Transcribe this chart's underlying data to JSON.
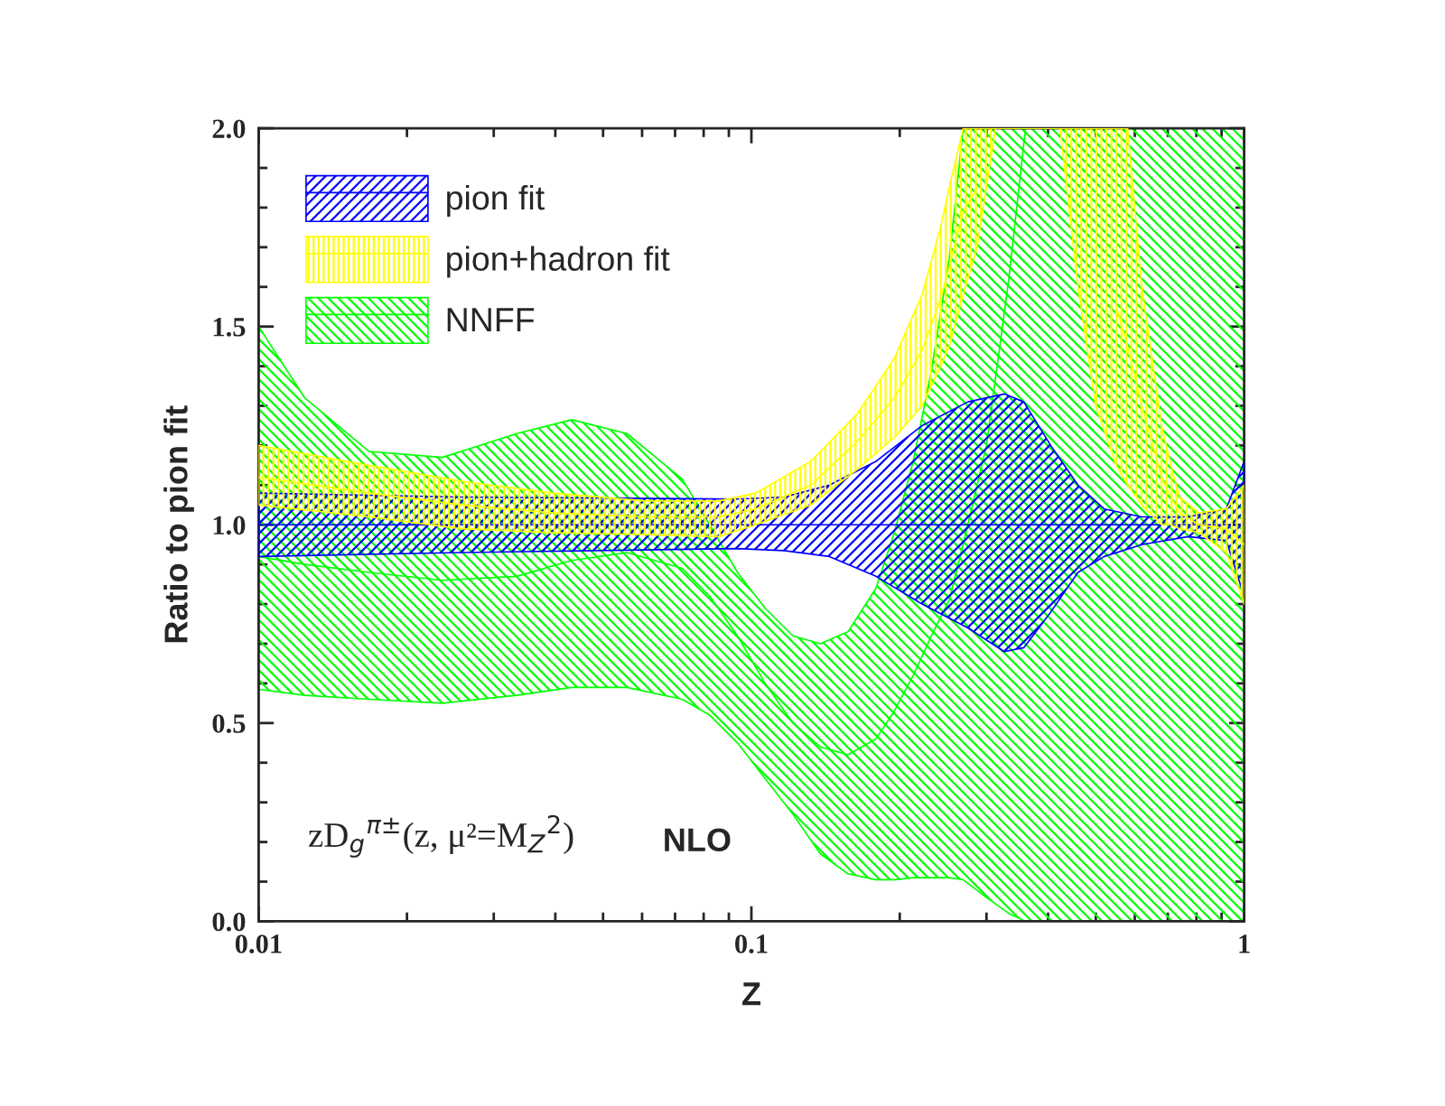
{
  "chart_data": {
    "type": "line",
    "xlabel": "Z",
    "ylabel": "Ratio to pion fit",
    "log": "x",
    "xlim": [
      0.01,
      1
    ],
    "xticks": [
      0.01,
      0.1,
      1
    ],
    "ylim": [
      0,
      2.0
    ],
    "yticks": [
      {
        "value": 0,
        "label": "0.0"
      },
      0.5,
      {
        "value": 1,
        "label": "1.0"
      },
      1.5,
      {
        "value": 2,
        "label": "2.0"
      }
    ],
    "grid": false,
    "legend": "top left",
    "marker": "none",
    "line_style": "solid",
    "annotations": [
      "zD$_{g}$$^{π±}$(z, μ²=M$_{Z}$$^{2}$)",
      "NLO"
    ],
    "series": [
      {
        "name": "pion fit",
        "color": "#0000ff",
        "x": [
          0.01,
          0.0258,
          0.0937,
          0.1165,
          0.144,
          0.179,
          0.222,
          0.275,
          0.326,
          0.357,
          0.405,
          0.46,
          0.52,
          0.62,
          0.77,
          0.92,
          1.0
        ],
        "values": [
          1.0,
          1.0,
          1.0,
          1.0,
          1.0,
          1.0,
          1.0,
          1.0,
          1.0,
          1.0,
          1.0,
          1.0,
          1.0,
          1.0,
          1.0,
          1.0,
          1.0
        ],
        "upper": [
          1.08,
          1.07,
          1.065,
          1.07,
          1.1,
          1.16,
          1.25,
          1.31,
          1.33,
          1.31,
          1.2,
          1.1,
          1.04,
          1.02,
          1.02,
          1.04,
          1.16
        ],
        "lower": [
          0.92,
          0.93,
          0.94,
          0.935,
          0.92,
          0.87,
          0.8,
          0.74,
          0.68,
          0.69,
          0.78,
          0.88,
          0.92,
          0.95,
          0.97,
          0.96,
          0.82
        ]
      },
      {
        "name": "pion+hadron fit",
        "color": "#ffff00",
        "x": [
          0.01,
          0.01676,
          0.02577,
          0.03964,
          0.0609,
          0.0859,
          0.102,
          0.132,
          0.164,
          0.195,
          0.222,
          0.242,
          0.252,
          0.269,
          0.287,
          0.313,
          0.4,
          0.423,
          0.46,
          0.5,
          0.55,
          0.58,
          0.62,
          0.68,
          0.71,
          0.74,
          0.81,
          0.92,
          1.0
        ],
        "values": [
          1.12,
          1.08,
          1.05,
          1.03,
          1.02,
          1.02,
          1.04,
          1.1,
          1.21,
          1.32,
          1.44,
          1.57,
          1.65,
          1.79,
          1.85,
          null,
          null,
          null,
          null,
          null,
          1.55,
          1.45,
          1.3,
          1.12,
          1.07,
          1.03,
          1.0,
          0.99,
          0.95
        ],
        "upper": [
          1.2,
          1.15,
          1.11,
          1.08,
          1.06,
          1.06,
          1.08,
          1.16,
          1.28,
          1.42,
          1.58,
          1.75,
          1.85,
          2.0,
          2.0,
          2.0,
          2.0,
          2.0,
          2.0,
          2.0,
          2.0,
          2.0,
          1.6,
          1.25,
          1.15,
          1.07,
          1.03,
          1.04,
          1.1
        ],
        "lower": [
          1.05,
          1.02,
          0.99,
          0.98,
          0.975,
          0.97,
          1.0,
          1.05,
          1.14,
          1.22,
          1.3,
          1.4,
          1.45,
          1.58,
          1.7,
          2.0,
          2.0,
          2.0,
          1.6,
          1.3,
          1.15,
          1.1,
          1.05,
          1.0,
          1.0,
          0.99,
          0.98,
          0.93,
          0.8
        ]
      },
      {
        "name": "NNFF",
        "color": "#00ff00",
        "x": [
          0.01,
          0.0124,
          0.01676,
          0.0236,
          0.0334,
          0.0432,
          0.0559,
          0.0724,
          0.0823,
          0.0937,
          0.1066,
          0.1214,
          0.138,
          0.157,
          0.179,
          0.195,
          0.213,
          0.232,
          0.252,
          0.269,
          0.3,
          0.333,
          0.36,
          0.4,
          0.6,
          1.0
        ],
        "values": [
          0.92,
          0.9,
          0.88,
          0.86,
          0.87,
          0.91,
          0.93,
          0.89,
          0.82,
          0.72,
          0.6,
          0.5,
          0.44,
          0.42,
          0.46,
          0.53,
          0.62,
          0.72,
          0.81,
          0.95,
          1.2,
          1.62,
          2.0,
          null,
          null,
          null
        ],
        "upper": [
          1.5,
          1.32,
          1.185,
          1.17,
          1.23,
          1.265,
          1.23,
          1.115,
          1.0,
          0.88,
          0.79,
          0.72,
          0.7,
          0.73,
          0.84,
          0.98,
          1.16,
          1.39,
          1.67,
          2.0,
          2.0,
          2.0,
          2.0,
          2.0,
          2.0,
          2.0
        ],
        "lower": [
          0.585,
          0.57,
          0.56,
          0.55,
          0.57,
          0.59,
          0.59,
          0.56,
          0.52,
          0.45,
          0.36,
          0.27,
          0.17,
          0.12,
          0.105,
          0.105,
          0.11,
          0.11,
          0.11,
          0.105,
          0.06,
          0.02,
          0,
          0,
          0,
          0
        ]
      }
    ]
  }
}
